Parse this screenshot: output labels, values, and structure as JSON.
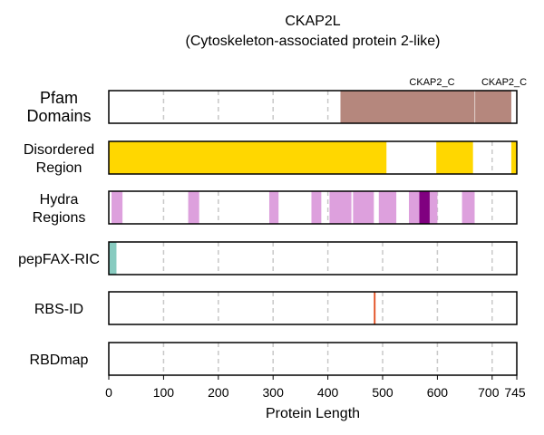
{
  "chart_data": {
    "type": "track",
    "title_line1": "CKAP2L",
    "title_line2": "(Cytoskeleton-associated protein 2-like)",
    "xlabel": "Protein Length",
    "xlim": [
      0,
      745
    ],
    "xticks": [
      0,
      100,
      200,
      300,
      400,
      500,
      600,
      700,
      745
    ],
    "xtick_labels": [
      "0",
      "100",
      "200",
      "300",
      "400",
      "500",
      "600",
      "700",
      "745"
    ],
    "grid": "vertical dashed at x ticks",
    "tracks": [
      {
        "label": "Pfam\nDomains",
        "segments": [
          {
            "start": 423,
            "end": 668,
            "color": "#b5877d",
            "label": "CKAP2_C"
          },
          {
            "start": 669,
            "end": 735,
            "color": "#b5877d",
            "label": "CKAP2_C"
          }
        ]
      },
      {
        "label": "Disordered\nRegion",
        "segments": [
          {
            "start": 0,
            "end": 507,
            "color": "#ffd700"
          },
          {
            "start": 598,
            "end": 665,
            "color": "#ffd700"
          },
          {
            "start": 735,
            "end": 745,
            "color": "#ffd700"
          }
        ]
      },
      {
        "label": "Hydra\nRegions",
        "segments": [
          {
            "start": 5,
            "end": 25,
            "color": "#dda0dd"
          },
          {
            "start": 145,
            "end": 165,
            "color": "#dda0dd"
          },
          {
            "start": 293,
            "end": 310,
            "color": "#dda0dd"
          },
          {
            "start": 370,
            "end": 388,
            "color": "#dda0dd"
          },
          {
            "start": 403,
            "end": 443,
            "color": "#dda0dd"
          },
          {
            "start": 446,
            "end": 484,
            "color": "#dda0dd"
          },
          {
            "start": 493,
            "end": 525,
            "color": "#dda0dd"
          },
          {
            "start": 548,
            "end": 567,
            "color": "#dda0dd"
          },
          {
            "start": 567,
            "end": 586,
            "color": "#800080"
          },
          {
            "start": 586,
            "end": 600,
            "color": "#dda0dd"
          },
          {
            "start": 645,
            "end": 668,
            "color": "#dda0dd"
          }
        ]
      },
      {
        "label": "pepFAX-RIC",
        "segments": [
          {
            "start": 0,
            "end": 14,
            "color": "#88cbc0"
          }
        ]
      },
      {
        "label": "RBS-ID",
        "segments": [
          {
            "start": 484,
            "end": 487,
            "color": "#e24a1a"
          }
        ]
      },
      {
        "label": "RBDmap",
        "segments": []
      }
    ]
  }
}
